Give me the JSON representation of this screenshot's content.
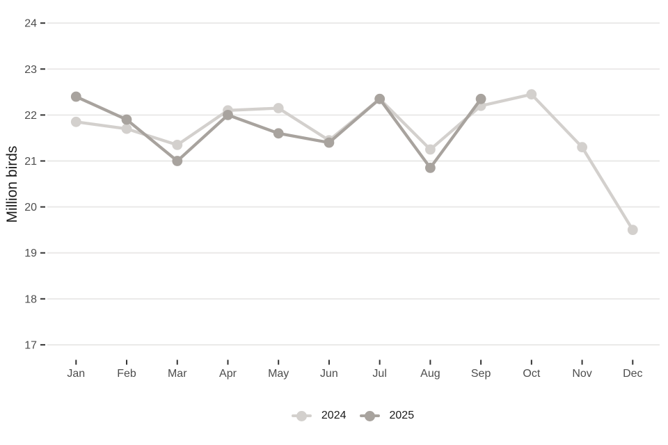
{
  "chart_data": {
    "type": "line",
    "title": "",
    "xlabel": "",
    "ylabel": "Million birds",
    "categories": [
      "Jan",
      "Feb",
      "Mar",
      "Apr",
      "May",
      "Jun",
      "Jul",
      "Aug",
      "Sep",
      "Oct",
      "Nov",
      "Dec"
    ],
    "y_ticks": [
      24,
      23,
      22,
      21,
      20,
      19,
      18,
      17
    ],
    "ylim": [
      16.68,
      24.32
    ],
    "grid": "horizontal major gridlines only",
    "legend_position": "bottom-center",
    "series": [
      {
        "name": "2024",
        "color": "#d3d0cd",
        "values": [
          21.85,
          21.7,
          21.35,
          22.1,
          22.15,
          21.45,
          22.35,
          21.25,
          22.2,
          22.45,
          21.3,
          19.5
        ]
      },
      {
        "name": "2025",
        "color": "#a8a39e",
        "values": [
          22.4,
          21.9,
          21.0,
          22.0,
          21.6,
          21.4,
          22.35,
          20.85,
          22.35
        ]
      }
    ]
  },
  "colors": {
    "background": "#ffffff",
    "gridline": "#e9e8e7",
    "tick_mark": "#333333",
    "tick_label": "#4d4d4d",
    "axis_title": "#1a1a1a",
    "legend_text": "#1a1a1a"
  }
}
